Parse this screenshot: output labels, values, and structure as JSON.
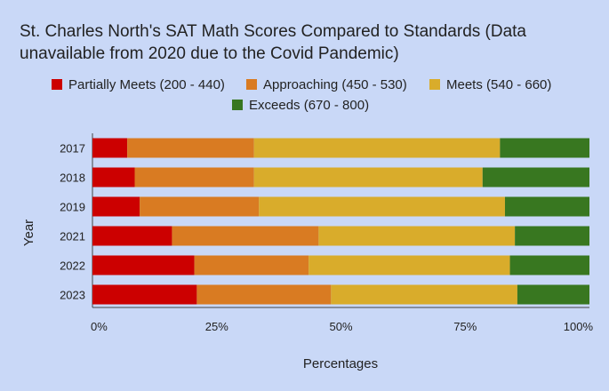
{
  "chart_data": {
    "type": "bar",
    "orientation": "horizontal",
    "stacked": "percent",
    "title": "St. Charles North's SAT Math Scores Compared to Standards (Data unavailable from 2020 due to the Covid Pandemic)",
    "xlabel": "Percentages",
    "ylabel": "Year",
    "categories": [
      "2017",
      "2018",
      "2019",
      "2021",
      "2022",
      "2023"
    ],
    "xlim": [
      0,
      100
    ],
    "x_ticks": [
      "0%",
      "25%",
      "50%",
      "75%",
      "100%"
    ],
    "grid": false,
    "legend_position": "top",
    "series": [
      {
        "name": "Partially Meets (200 - 440)",
        "color": "#cc0000",
        "values": [
          7.0,
          8.5,
          9.5,
          16.0,
          20.5,
          21.0
        ]
      },
      {
        "name": "Approaching (450 - 530)",
        "color": "#d97b22",
        "values": [
          25.5,
          24.0,
          24.0,
          29.5,
          23.0,
          27.0
        ]
      },
      {
        "name": "Meets (540 - 660)",
        "color": "#d9ac2b",
        "values": [
          49.5,
          46.0,
          49.5,
          39.5,
          40.5,
          37.5
        ]
      },
      {
        "name": "Exceeds (670 - 800)",
        "color": "#387720",
        "values": [
          18.0,
          21.5,
          17.0,
          15.0,
          16.0,
          14.5
        ]
      }
    ]
  }
}
